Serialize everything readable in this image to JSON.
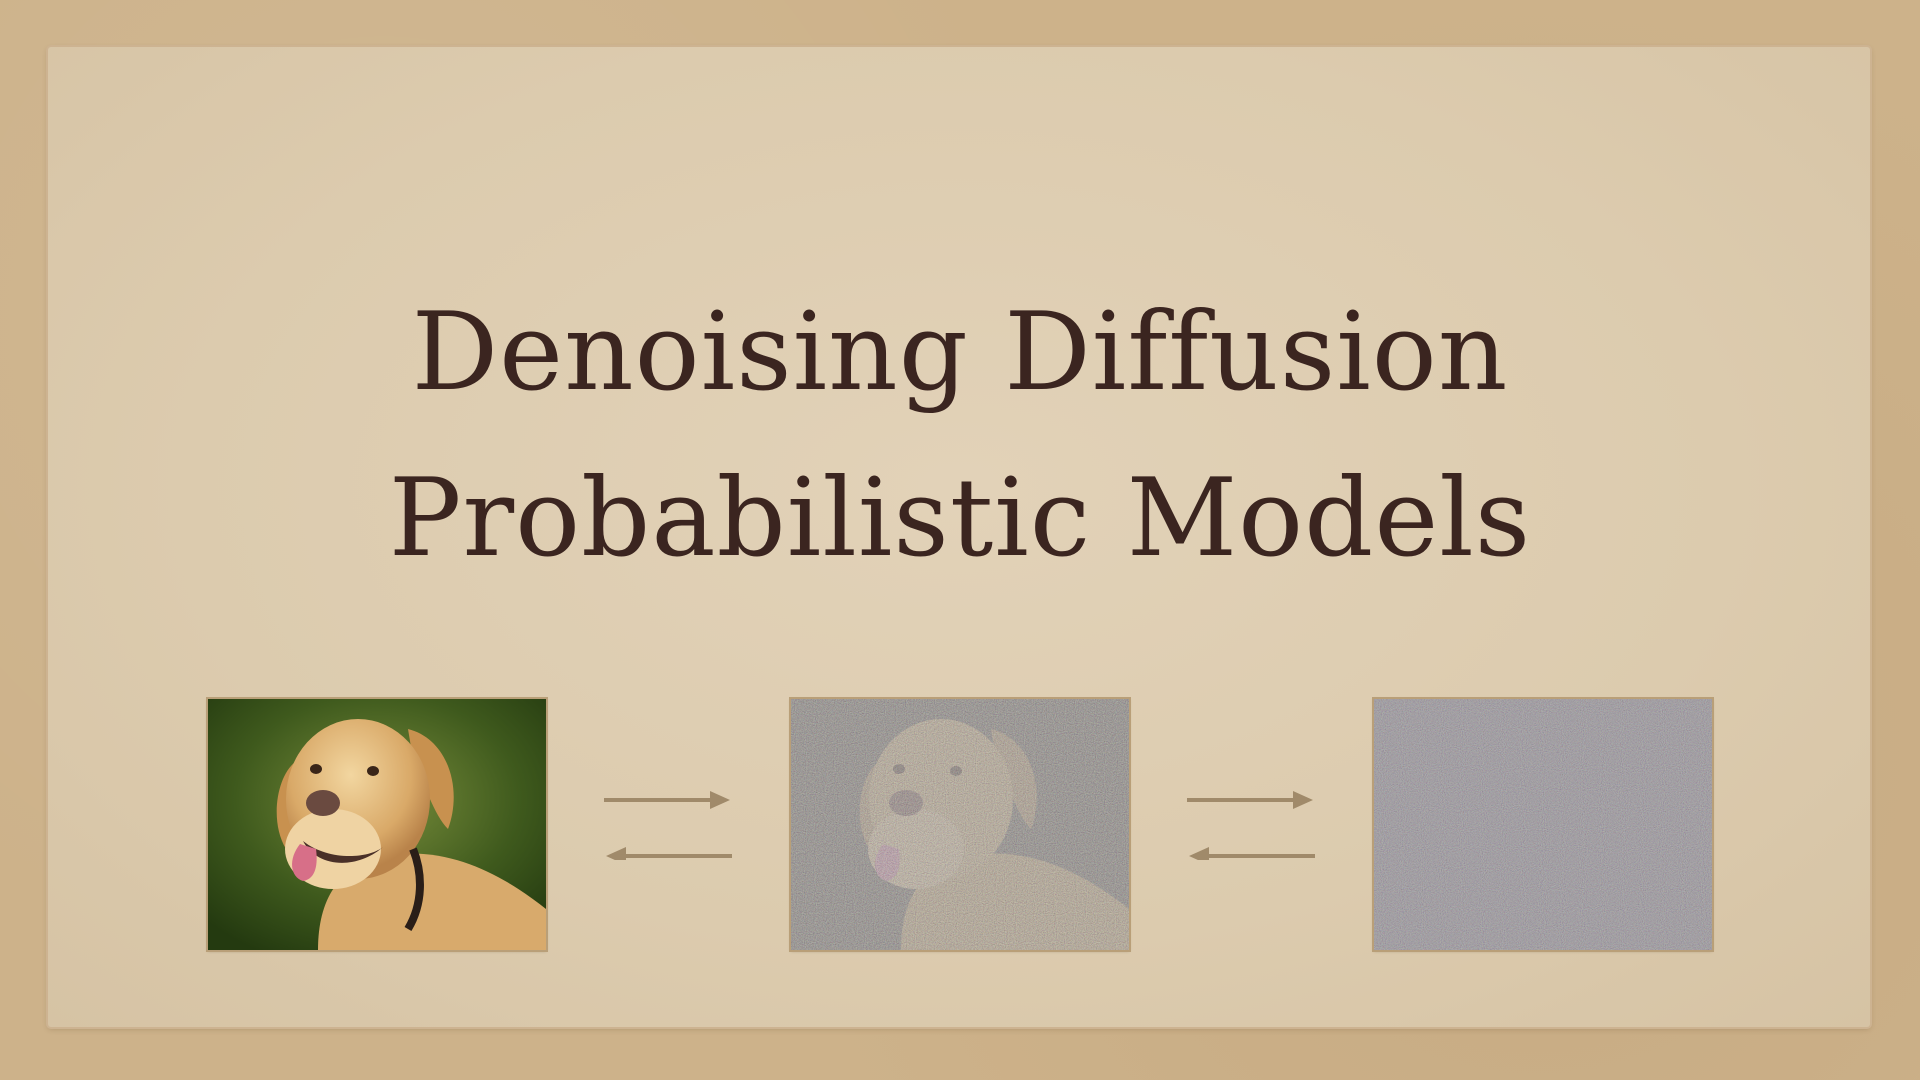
{
  "slide": {
    "title_line1": "Denoising Diffusion",
    "title_line2": "Probabilistic Models"
  },
  "images": [
    {
      "name": "clean-dog-image"
    },
    {
      "name": "partially-noised-dog-image"
    },
    {
      "name": "pure-noise-image"
    }
  ],
  "colors": {
    "background": "#cdb28a",
    "paper": "#dfcdb1",
    "title_text": "#3b2520",
    "arrow": "#a08a6a"
  }
}
